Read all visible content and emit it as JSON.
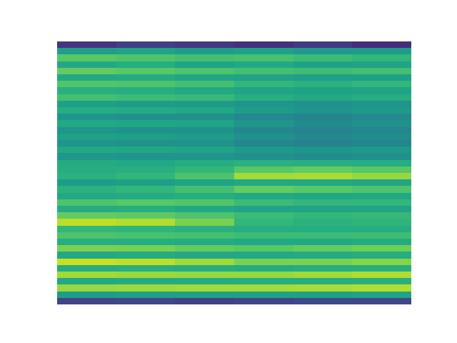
{
  "chart_data": {
    "type": "heatmap",
    "tick_labels": false,
    "color": "viridis",
    "zlim": [
      0,
      1
    ],
    "cells": [
      [
        0.15,
        0.18,
        0.16,
        0.14,
        0.17,
        0.13
      ],
      [
        0.56,
        0.58,
        0.55,
        0.57,
        0.54,
        0.55
      ],
      [
        0.74,
        0.72,
        0.7,
        0.71,
        0.68,
        0.66
      ],
      [
        0.6,
        0.62,
        0.58,
        0.6,
        0.57,
        0.58
      ],
      [
        0.76,
        0.74,
        0.72,
        0.7,
        0.69,
        0.7
      ],
      [
        0.6,
        0.61,
        0.59,
        0.58,
        0.56,
        0.57
      ],
      [
        0.73,
        0.72,
        0.7,
        0.66,
        0.64,
        0.66
      ],
      [
        0.63,
        0.62,
        0.6,
        0.58,
        0.57,
        0.58
      ],
      [
        0.7,
        0.68,
        0.67,
        0.63,
        0.6,
        0.62
      ],
      [
        0.56,
        0.55,
        0.54,
        0.52,
        0.5,
        0.52
      ],
      [
        0.62,
        0.61,
        0.6,
        0.55,
        0.52,
        0.54
      ],
      [
        0.52,
        0.51,
        0.5,
        0.47,
        0.45,
        0.47
      ],
      [
        0.6,
        0.59,
        0.58,
        0.52,
        0.48,
        0.5
      ],
      [
        0.52,
        0.51,
        0.5,
        0.46,
        0.44,
        0.46
      ],
      [
        0.57,
        0.56,
        0.55,
        0.5,
        0.47,
        0.49
      ],
      [
        0.52,
        0.5,
        0.5,
        0.46,
        0.44,
        0.46
      ],
      [
        0.6,
        0.59,
        0.58,
        0.54,
        0.52,
        0.54
      ],
      [
        0.53,
        0.52,
        0.52,
        0.5,
        0.49,
        0.5
      ],
      [
        0.61,
        0.6,
        0.62,
        0.64,
        0.63,
        0.62
      ],
      [
        0.62,
        0.63,
        0.66,
        0.74,
        0.76,
        0.74
      ],
      [
        0.64,
        0.66,
        0.72,
        0.86,
        0.87,
        0.84
      ],
      [
        0.55,
        0.56,
        0.58,
        0.6,
        0.6,
        0.59
      ],
      [
        0.64,
        0.66,
        0.7,
        0.76,
        0.74,
        0.72
      ],
      [
        0.6,
        0.61,
        0.62,
        0.6,
        0.59,
        0.6
      ],
      [
        0.72,
        0.74,
        0.73,
        0.68,
        0.66,
        0.66
      ],
      [
        0.61,
        0.62,
        0.6,
        0.58,
        0.58,
        0.58
      ],
      [
        0.76,
        0.75,
        0.72,
        0.68,
        0.66,
        0.67
      ],
      [
        0.9,
        0.88,
        0.8,
        0.66,
        0.64,
        0.65
      ],
      [
        0.66,
        0.65,
        0.64,
        0.62,
        0.62,
        0.62
      ],
      [
        0.72,
        0.71,
        0.7,
        0.68,
        0.68,
        0.69
      ],
      [
        0.62,
        0.62,
        0.61,
        0.6,
        0.6,
        0.61
      ],
      [
        0.8,
        0.79,
        0.76,
        0.74,
        0.76,
        0.78
      ],
      [
        0.6,
        0.61,
        0.6,
        0.6,
        0.61,
        0.62
      ],
      [
        0.92,
        0.9,
        0.86,
        0.8,
        0.8,
        0.82
      ],
      [
        0.62,
        0.63,
        0.62,
        0.61,
        0.62,
        0.63
      ],
      [
        0.86,
        0.85,
        0.84,
        0.84,
        0.86,
        0.88
      ],
      [
        0.6,
        0.61,
        0.61,
        0.62,
        0.62,
        0.63
      ],
      [
        0.84,
        0.85,
        0.86,
        0.86,
        0.87,
        0.88
      ],
      [
        0.55,
        0.56,
        0.56,
        0.57,
        0.57,
        0.58
      ],
      [
        0.2,
        0.21,
        0.19,
        0.2,
        0.22,
        0.21
      ]
    ]
  }
}
